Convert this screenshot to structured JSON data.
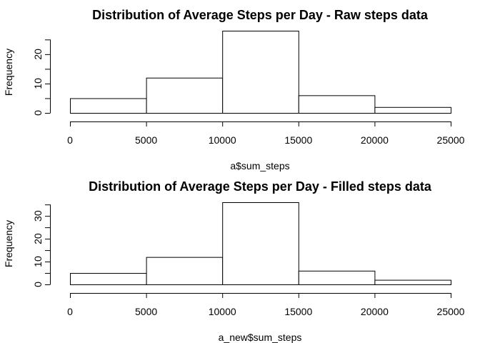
{
  "chart_data": [
    {
      "type": "bar",
      "title": "Distribution of Average Steps per Day - Raw steps data",
      "xlabel": "a$sum_steps",
      "ylabel": "Frequency",
      "bins": [
        [
          0,
          5000
        ],
        [
          5000,
          10000
        ],
        [
          10000,
          15000
        ],
        [
          15000,
          20000
        ],
        [
          20000,
          25000
        ]
      ],
      "values": [
        5,
        12,
        28,
        6,
        2
      ],
      "xlim": [
        0,
        25000
      ],
      "ylim": [
        0,
        28
      ],
      "x_ticks": [
        0,
        5000,
        10000,
        15000,
        20000,
        25000
      ],
      "y_ticks": [
        0,
        10,
        20
      ],
      "y_minor_ticks": [
        5,
        15,
        25
      ],
      "grid": false
    },
    {
      "type": "bar",
      "title": "Distribution of Average Steps per Day - Filled steps data",
      "xlabel": "a_new$sum_steps",
      "ylabel": "Frequency",
      "bins": [
        [
          0,
          5000
        ],
        [
          5000,
          10000
        ],
        [
          10000,
          15000
        ],
        [
          15000,
          20000
        ],
        [
          20000,
          25000
        ]
      ],
      "values": [
        5,
        12,
        36,
        6,
        2
      ],
      "xlim": [
        0,
        25000
      ],
      "ylim": [
        0,
        36
      ],
      "x_ticks": [
        0,
        5000,
        10000,
        15000,
        20000,
        25000
      ],
      "y_ticks": [
        0,
        10,
        20,
        30
      ],
      "y_minor_ticks": [
        5,
        15,
        25,
        35
      ],
      "grid": false
    }
  ]
}
